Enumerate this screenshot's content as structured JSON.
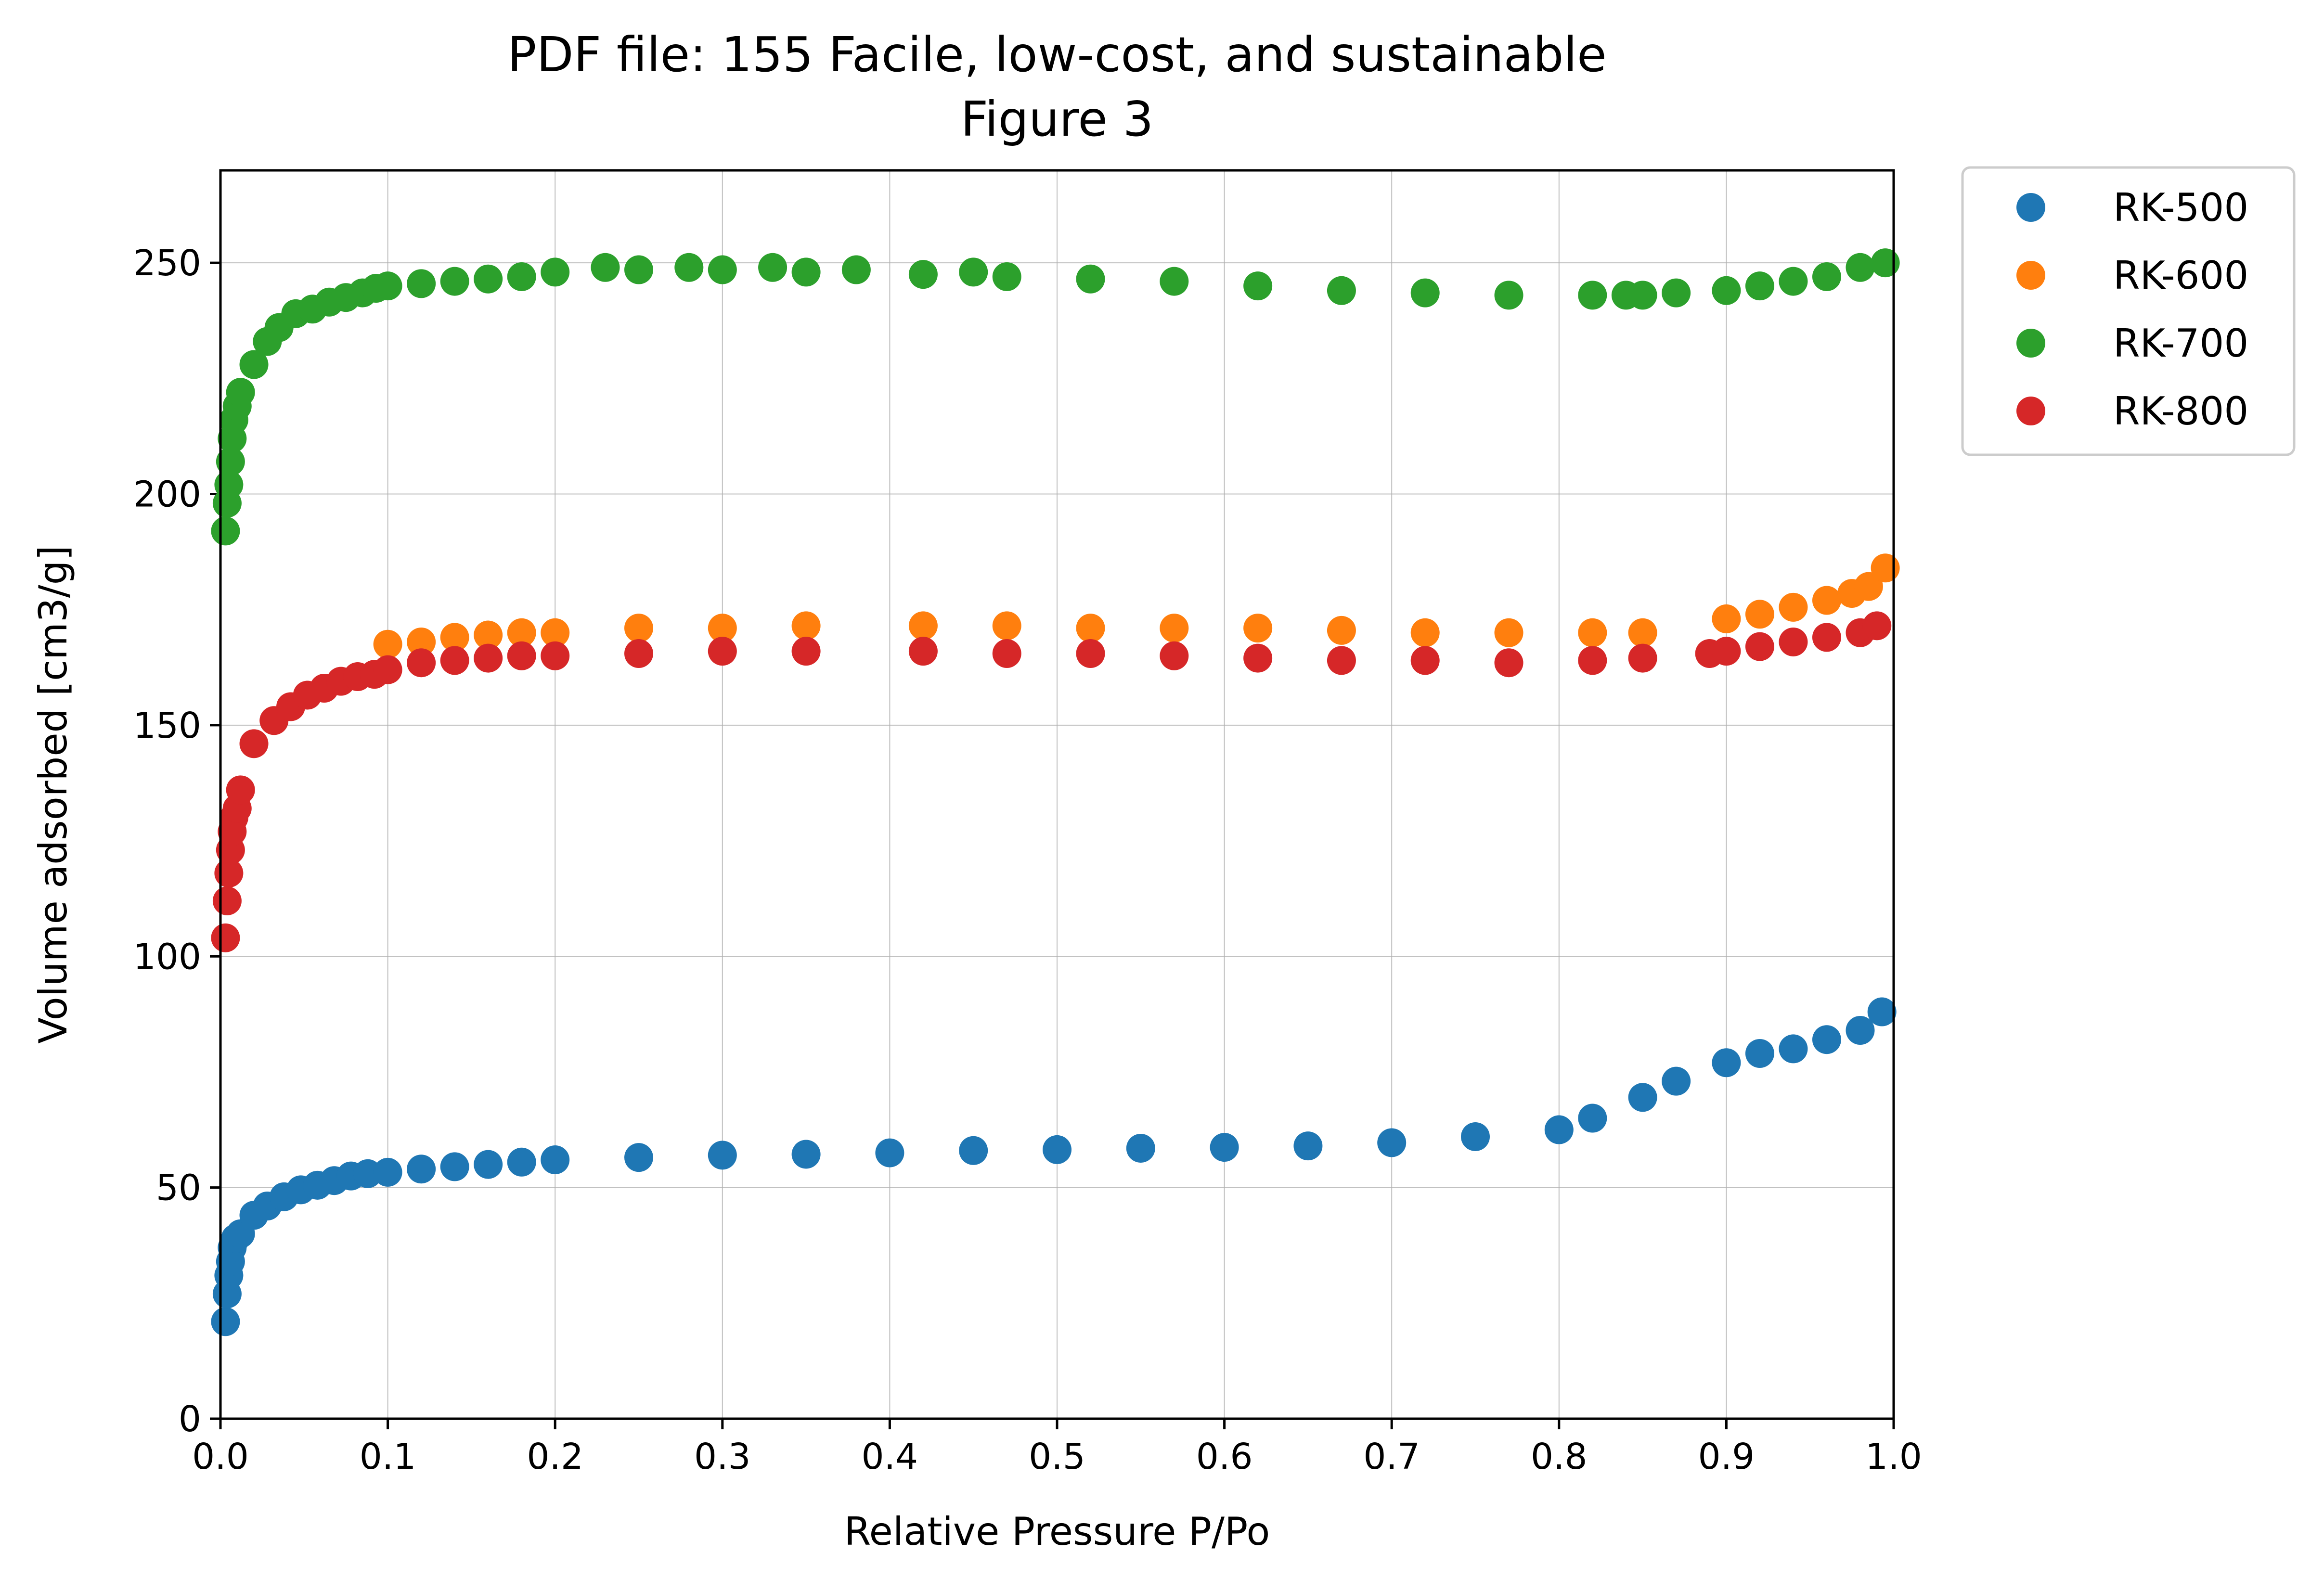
{
  "chart_data": {
    "type": "scatter",
    "title": [
      "PDF file: 155 Facile, low-cost, and sustainable",
      "Figure 3"
    ],
    "xlabel": "Relative Pressure P/Po",
    "ylabel": "Volume adsorbed [cm3/g]",
    "xlim": [
      0.0,
      1.0
    ],
    "ylim": [
      0,
      270
    ],
    "xticks": [
      "0.0",
      "0.1",
      "0.2",
      "0.3",
      "0.4",
      "0.5",
      "0.6",
      "0.7",
      "0.8",
      "0.9",
      "1.0"
    ],
    "yticks": [
      "0",
      "50",
      "100",
      "150",
      "200",
      "250"
    ],
    "grid": true,
    "legend_position": "outside-top-right",
    "series": [
      {
        "name": "RK-500",
        "color": "#1f77b4",
        "x": [
          0.003,
          0.004,
          0.005,
          0.006,
          0.007,
          0.009,
          0.012,
          0.02,
          0.028,
          0.038,
          0.048,
          0.058,
          0.068,
          0.078,
          0.088,
          0.1,
          0.12,
          0.14,
          0.16,
          0.18,
          0.2,
          0.25,
          0.3,
          0.35,
          0.4,
          0.45,
          0.5,
          0.55,
          0.6,
          0.65,
          0.7,
          0.75,
          0.8,
          0.82,
          0.85,
          0.87,
          0.9,
          0.92,
          0.94,
          0.96,
          0.98,
          0.993
        ],
        "y": [
          21,
          27,
          31,
          34,
          37,
          39,
          40,
          44,
          46,
          48,
          49.5,
          50.5,
          51.5,
          52.5,
          53,
          53.3,
          54,
          54.5,
          55,
          55.5,
          56,
          56.5,
          57,
          57.2,
          57.5,
          58,
          58.2,
          58.5,
          58.7,
          59,
          59.7,
          61,
          62.5,
          65,
          69.5,
          73,
          77,
          79,
          80,
          82,
          84,
          88
        ]
      },
      {
        "name": "RK-600",
        "color": "#ff7f0e",
        "x": [
          0.1,
          0.12,
          0.14,
          0.16,
          0.18,
          0.2,
          0.25,
          0.3,
          0.35,
          0.42,
          0.47,
          0.52,
          0.57,
          0.62,
          0.67,
          0.72,
          0.77,
          0.82,
          0.85,
          0.9,
          0.92,
          0.94,
          0.96,
          0.975,
          0.985,
          0.995
        ],
        "y": [
          167.5,
          168,
          169,
          169.5,
          170,
          170,
          171,
          171,
          171.5,
          171.5,
          171.5,
          171,
          171,
          171,
          170.5,
          170,
          170,
          170,
          170,
          173,
          174,
          175.5,
          177,
          178.5,
          180,
          184
        ]
      },
      {
        "name": "RK-700",
        "color": "#2ca02c",
        "x": [
          0.003,
          0.004,
          0.005,
          0.006,
          0.007,
          0.008,
          0.01,
          0.012,
          0.02,
          0.028,
          0.035,
          0.045,
          0.055,
          0.065,
          0.075,
          0.085,
          0.093,
          0.1,
          0.12,
          0.14,
          0.16,
          0.18,
          0.2,
          0.23,
          0.25,
          0.28,
          0.3,
          0.33,
          0.35,
          0.38,
          0.42,
          0.45,
          0.47,
          0.52,
          0.57,
          0.62,
          0.67,
          0.72,
          0.77,
          0.82,
          0.84,
          0.85,
          0.87,
          0.9,
          0.92,
          0.94,
          0.96,
          0.98,
          0.995
        ],
        "y": [
          192,
          198,
          202,
          207,
          212,
          216,
          219,
          222,
          228,
          233,
          236,
          239,
          240,
          241.5,
          242.5,
          243.5,
          244.5,
          245,
          245.5,
          246,
          246.5,
          247,
          248,
          249,
          248.5,
          249,
          248.5,
          249,
          248,
          248.5,
          247.5,
          248,
          247,
          246.5,
          246,
          245,
          244,
          243.5,
          243,
          243,
          243,
          243,
          243.5,
          244,
          245,
          246,
          247,
          249,
          250
        ]
      },
      {
        "name": "RK-800",
        "color": "#d62728",
        "x": [
          0.003,
          0.004,
          0.005,
          0.006,
          0.007,
          0.008,
          0.01,
          0.012,
          0.02,
          0.032,
          0.042,
          0.052,
          0.062,
          0.072,
          0.082,
          0.092,
          0.1,
          0.12,
          0.14,
          0.16,
          0.18,
          0.2,
          0.25,
          0.3,
          0.35,
          0.42,
          0.47,
          0.52,
          0.57,
          0.62,
          0.67,
          0.72,
          0.77,
          0.82,
          0.85,
          0.89,
          0.9,
          0.92,
          0.94,
          0.96,
          0.98,
          0.99
        ],
        "y": [
          104,
          112,
          118,
          123,
          127,
          130,
          132,
          136,
          146,
          151,
          154,
          156.5,
          158,
          159.5,
          160.5,
          161,
          162,
          163.5,
          164,
          164.5,
          165,
          165,
          165.5,
          166,
          166,
          166,
          165.5,
          165.5,
          165,
          164.5,
          164,
          164,
          163.5,
          164,
          164.5,
          165.5,
          166,
          167,
          168,
          169,
          170,
          171.5
        ]
      }
    ]
  }
}
